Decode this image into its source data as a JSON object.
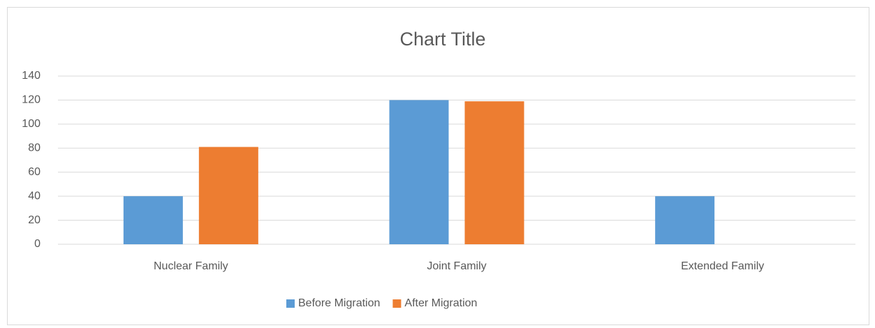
{
  "chart_data": {
    "type": "bar",
    "title": "Chart Title",
    "categories": [
      "Nuclear Family",
      "Joint Family",
      "Extended Family"
    ],
    "series": [
      {
        "name": "Before Migration",
        "color": "#5b9bd5",
        "values": [
          40,
          120,
          40
        ]
      },
      {
        "name": "After Migration",
        "color": "#ed7d31",
        "values": [
          81,
          119,
          0
        ]
      }
    ],
    "ylim": [
      0,
      140
    ],
    "yticks": [
      0,
      20,
      40,
      60,
      80,
      100,
      120,
      140
    ],
    "grid": true,
    "legend": "bottom"
  }
}
